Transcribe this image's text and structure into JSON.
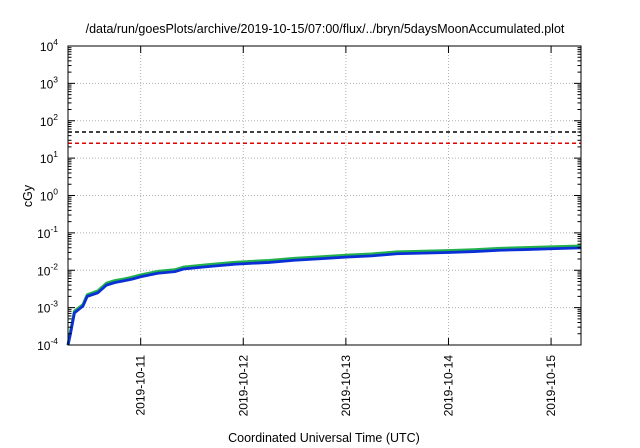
{
  "chart_data": {
    "type": "line",
    "title": "/data/run/goesPlots/archive/2019-10-15/07:00/flux/../bryn/5daysMoonAccumulated.plot",
    "xlabel": "Coordinated Universal Time (UTC)",
    "ylabel": "cGy",
    "x_scale": "time",
    "y_scale": "log",
    "xlim": [
      "2019-10-10T07:00",
      "2019-10-15T07:00"
    ],
    "ylim": [
      0.0001,
      10000
    ],
    "x_ticks": [
      "2019-10-11",
      "2019-10-12",
      "2019-10-13",
      "2019-10-14",
      "2019-10-15"
    ],
    "y_ticks": [
      {
        "base": "10",
        "exp": "-4",
        "value": 0.0001
      },
      {
        "base": "10",
        "exp": "-3",
        "value": 0.001
      },
      {
        "base": "10",
        "exp": "-2",
        "value": 0.01
      },
      {
        "base": "10",
        "exp": "-1",
        "value": 0.1
      },
      {
        "base": "10",
        "exp": "0",
        "value": 1
      },
      {
        "base": "10",
        "exp": "1",
        "value": 10
      },
      {
        "base": "10",
        "exp": "2",
        "value": 100
      },
      {
        "base": "10",
        "exp": "3",
        "value": 1000
      },
      {
        "base": "10",
        "exp": "4",
        "value": 10000
      }
    ],
    "grid": true,
    "reference_lines": [
      {
        "y": 50,
        "color": "#000000",
        "style": "dashed"
      },
      {
        "y": 25,
        "color": "#e00000",
        "style": "dashed"
      }
    ],
    "series": [
      {
        "color": "#22b14c",
        "x": [
          "2019-10-10T07:00",
          "2019-10-10T07:30",
          "2019-10-10T08:30",
          "2019-10-10T10:30",
          "2019-10-10T11:30",
          "2019-10-10T14:00",
          "2019-10-10T16:00",
          "2019-10-10T18:00",
          "2019-10-10T20:00",
          "2019-10-10T22:00",
          "2019-10-11T00:00",
          "2019-10-11T04:00",
          "2019-10-11T08:00",
          "2019-10-11T10:00",
          "2019-10-11T16:00",
          "2019-10-11T22:00",
          "2019-10-12T06:00",
          "2019-10-12T12:00",
          "2019-10-12T18:00",
          "2019-10-13T00:00",
          "2019-10-13T06:00",
          "2019-10-13T12:00",
          "2019-10-13T18:00",
          "2019-10-14T00:00",
          "2019-10-14T06:00",
          "2019-10-14T12:00",
          "2019-10-14T18:00",
          "2019-10-15T00:00",
          "2019-10-15T07:00"
        ],
        "y": [
          0.0001,
          0.0002,
          0.0008,
          0.0012,
          0.0022,
          0.0028,
          0.0045,
          0.0053,
          0.0058,
          0.0065,
          0.0075,
          0.0093,
          0.0103,
          0.0121,
          0.0142,
          0.0163,
          0.0182,
          0.0208,
          0.0228,
          0.0252,
          0.0272,
          0.031,
          0.0322,
          0.0336,
          0.0355,
          0.0385,
          0.0402,
          0.0422,
          0.0445
        ]
      },
      {
        "color": "#0b2fd6",
        "x": [
          "2019-10-10T07:00",
          "2019-10-10T07:30",
          "2019-10-10T08:30",
          "2019-10-10T10:30",
          "2019-10-10T11:30",
          "2019-10-10T14:00",
          "2019-10-10T16:00",
          "2019-10-10T18:00",
          "2019-10-10T20:00",
          "2019-10-10T22:00",
          "2019-10-11T00:00",
          "2019-10-11T04:00",
          "2019-10-11T08:00",
          "2019-10-11T10:00",
          "2019-10-11T16:00",
          "2019-10-11T22:00",
          "2019-10-12T06:00",
          "2019-10-12T12:00",
          "2019-10-12T18:00",
          "2019-10-13T00:00",
          "2019-10-13T06:00",
          "2019-10-13T12:00",
          "2019-10-13T18:00",
          "2019-10-14T00:00",
          "2019-10-14T06:00",
          "2019-10-14T12:00",
          "2019-10-14T18:00",
          "2019-10-15T00:00",
          "2019-10-15T07:00"
        ],
        "y": [
          0.0001,
          0.00018,
          0.00072,
          0.0011,
          0.002,
          0.0025,
          0.004,
          0.0047,
          0.0052,
          0.0058,
          0.0067,
          0.0083,
          0.0092,
          0.0108,
          0.0126,
          0.0145,
          0.0162,
          0.0185,
          0.0203,
          0.0224,
          0.0242,
          0.0276,
          0.0287,
          0.0299,
          0.0316,
          0.0343,
          0.0358,
          0.0376,
          0.0396
        ]
      }
    ]
  }
}
